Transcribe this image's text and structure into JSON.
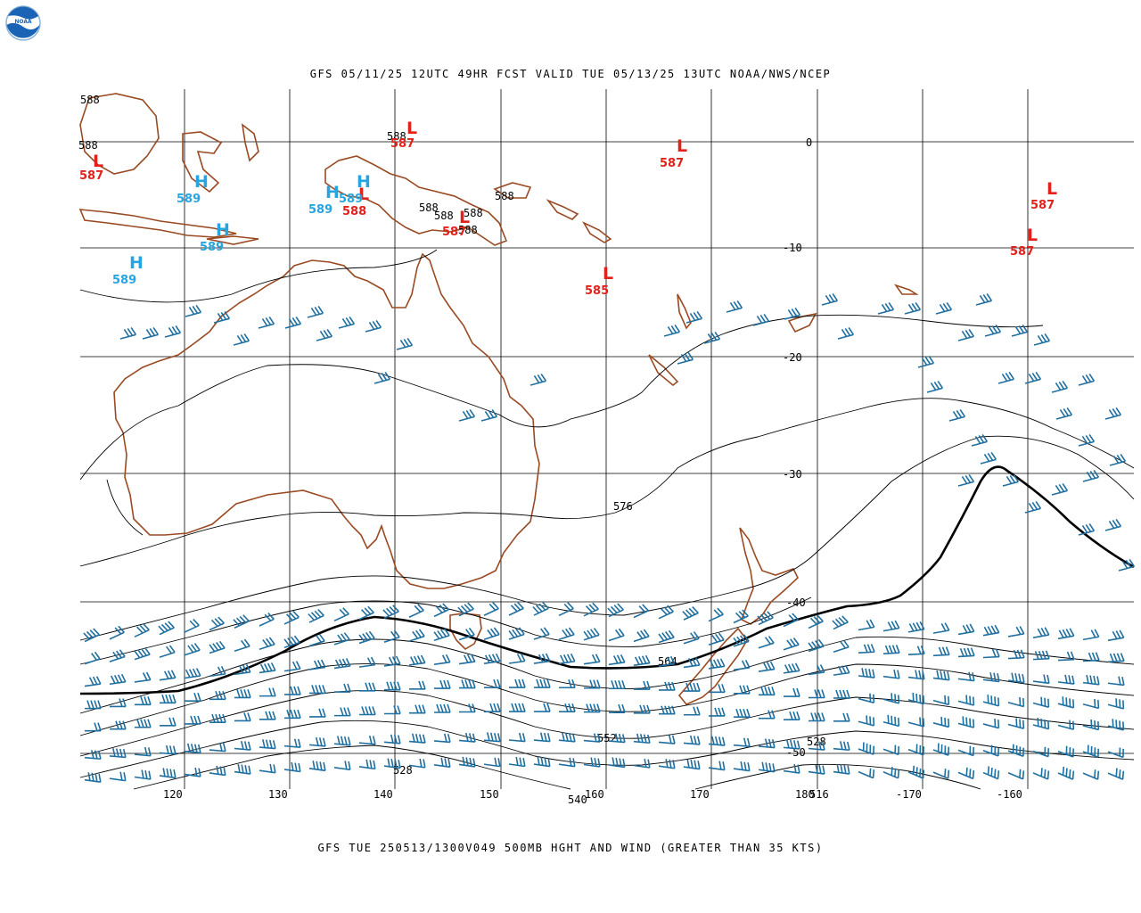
{
  "header": {
    "title": "GFS 05/11/25 12UTC 49HR FCST VALID TUE 05/13/25 13UTC NOAA/NWS/NCEP",
    "footer": "GFS TUE 250513/1300V049 500MB HGHT AND WIND (GREATER THAN 35 KTS)"
  },
  "logo": {
    "text": "NOAA",
    "icon": "noaa-logo-icon"
  },
  "colors": {
    "coast": "#9a4a22",
    "grid": "#000000",
    "contour": "#000000",
    "barb": "#1f6fa0",
    "high": "#27a5e0",
    "low": "#e3211b"
  },
  "map": {
    "projection": "mercator",
    "lon_labels": [
      "120",
      "130",
      "140",
      "150",
      "160",
      "170",
      "180",
      "-170",
      "-160"
    ],
    "lat_labels": [
      "0",
      "-10",
      "-20",
      "-30",
      "-40",
      "-50"
    ],
    "grid": true
  },
  "contour_labels": [
    "576",
    "564",
    "552",
    "540",
    "528",
    "528",
    "516"
  ],
  "pressure_centers": [
    {
      "type": "L",
      "value": "587"
    },
    {
      "type": "L",
      "value": "587"
    },
    {
      "type": "L",
      "value": "587"
    },
    {
      "type": "L",
      "value": "588"
    },
    {
      "type": "L",
      "value": "587"
    },
    {
      "type": "L",
      "value": "585"
    },
    {
      "type": "L",
      "value": "587"
    },
    {
      "type": "L",
      "value": "587"
    },
    {
      "type": "H",
      "value": "589"
    },
    {
      "type": "H",
      "value": "589"
    },
    {
      "type": "H",
      "value": "589"
    },
    {
      "type": "H",
      "value": "589"
    },
    {
      "type": "H",
      "value": "589"
    }
  ],
  "edge_labels": [
    "588",
    "588",
    "588",
    "588",
    "588",
    "588",
    "588",
    "588",
    "588"
  ]
}
